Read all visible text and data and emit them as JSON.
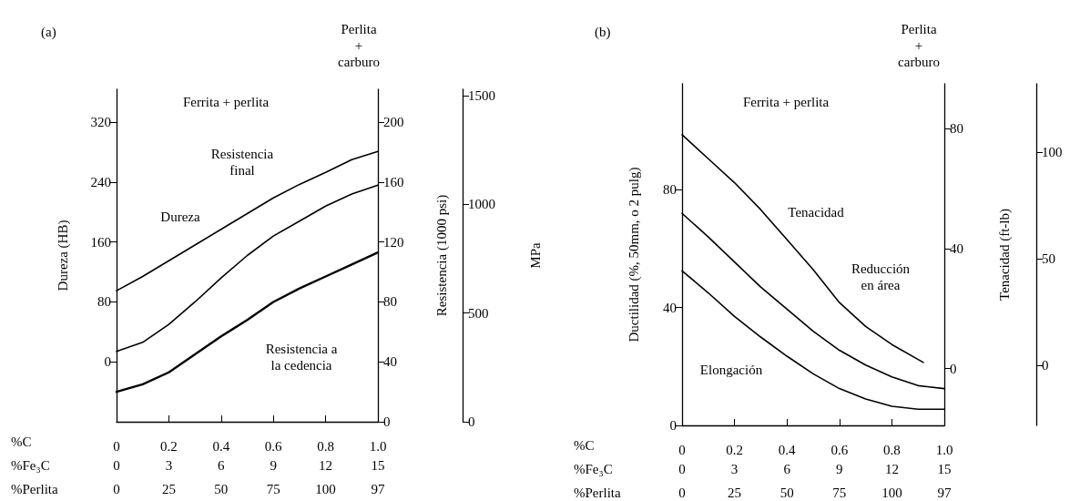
{
  "chart_data": [
    {
      "type": "line",
      "title": "(a)",
      "xlabel": "%C",
      "x2label": "%Fe₃C",
      "ylabel": "Dureza (HB)",
      "y2label": "Resistencia (1000 psi)",
      "y3label": "MPa",
      "x": [
        0,
        0.1,
        0.2,
        0.3,
        0.4,
        0.5,
        0.6,
        0.7,
        0.8,
        0.9,
        1.0
      ],
      "xlim": [
        0,
        1
      ],
      "xticks": [
        0,
        0.2,
        0.4,
        0.6,
        0.8,
        {
          "value": 1,
          "label": "1.0"
        }
      ],
      "x2lim": [
        0,
        15
      ],
      "x2ticks": [
        0,
        3,
        6,
        9,
        12,
        15
      ],
      "ylim": [
        -80,
        364
      ],
      "yticks": [
        0,
        80,
        160,
        240,
        320
      ],
      "y2lim": [
        0,
        222
      ],
      "y2ticks": [
        0,
        40,
        80,
        120,
        160,
        200
      ],
      "y3lim": [
        0,
        1530
      ],
      "y3ticks": [
        0,
        500,
        1000,
        1500
      ],
      "series": [
        {
          "color": "#000000",
          "values": [
            95,
            114,
            135,
            156,
            177,
            198,
            219,
            237,
            253,
            270,
            281
          ]
        },
        {
          "color": "#000000",
          "axis": "y2",
          "values": [
            47,
            53,
            65,
            80,
            96,
            111,
            124,
            134,
            144,
            152,
            158
          ]
        },
        {
          "color": "#000000",
          "axis": "y2",
          "values": [
            20,
            25,
            33,
            45,
            57,
            68,
            80,
            89,
            97,
            105,
            113
          ]
        }
      ],
      "annotations": [
        "Perlita\n+\ncarburo",
        "Ferrita + perlita",
        "Resistencia\nfinal",
        "Dureza",
        "Resistencia a\nla cedencia",
        "%Perlita",
        "0",
        "25",
        "50",
        "75",
        "100",
        "97"
      ]
    },
    {
      "type": "line",
      "title": "(b)",
      "xlabel": "%C",
      "x2label": "%Fe₃C",
      "ylabel": "Ductilidad (%, 50mm, o 2 pulg)",
      "y2label": "Tenacidad (ft-lb)",
      "x": [
        0,
        0.1,
        0.2,
        0.3,
        0.4,
        0.5,
        0.6,
        0.7,
        0.8,
        0.9,
        1.0
      ],
      "xlim": [
        0,
        1
      ],
      "xticks": [
        0,
        0.2,
        0.4,
        0.6,
        0.8,
        {
          "value": 1,
          "label": "1.0"
        }
      ],
      "x2lim": [
        0,
        15
      ],
      "x2ticks": [
        0,
        3,
        6,
        9,
        12,
        15
      ],
      "ylim": [
        0,
        116
      ],
      "yticks": [
        0,
        40,
        80
      ],
      "y2lim": [
        -19,
        95
      ],
      "y2ticks": [
        0,
        40,
        80
      ],
      "y3lim": [
        -28,
        132
      ],
      "y3ticks": [
        0,
        50,
        100
      ],
      "series": [
        {
          "color": "#000000",
          "axis": "y2",
          "x": [
            0,
            0.1,
            0.2,
            0.3,
            0.4,
            0.5,
            0.6,
            0.7,
            0.8,
            0.9,
            0.92
          ],
          "values": [
            78,
            70,
            62,
            53,
            43,
            33,
            22,
            14,
            8,
            3,
            2
          ]
        },
        {
          "color": "#000000",
          "values": [
            72,
            64,
            55.5,
            47,
            39.5,
            32,
            25.5,
            20.5,
            16.5,
            13.5,
            12.5
          ]
        },
        {
          "color": "#000000",
          "values": [
            52.5,
            45,
            37,
            30,
            23.5,
            17.5,
            12.5,
            9,
            6.5,
            5.5,
            5.5
          ]
        }
      ],
      "annotations": [
        "Perlita\n+\ncarburo",
        "Ferrita + perlita",
        "Tenacidad",
        "Reducción\nen área",
        "Elongación",
        "%Perlita",
        "0",
        "25",
        "50",
        "75",
        "100",
        "97"
      ]
    }
  ]
}
